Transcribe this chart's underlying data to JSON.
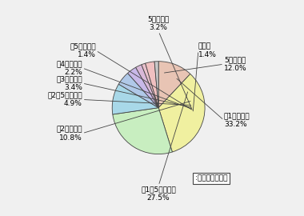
{
  "values": [
    12.0,
    33.2,
    27.5,
    10.8,
    4.9,
    3.4,
    2.2,
    1.4,
    3.2,
    1.4
  ],
  "colors": [
    "#e8c4b4",
    "#f0f0a0",
    "#c8eec0",
    "#a8d8e8",
    "#b0c8e8",
    "#c8b8e8",
    "#d8b8d8",
    "#e8c0cc",
    "#f0c0c0",
    "#c8c8c8"
  ],
  "labels": [
    "5千円未満",
    "〜1万円未満",
    "〜1万5千円未満",
    "〜2万円未満",
    "〜2万5千円未満",
    "〜3万円未満",
    "〜4万円未満",
    "〜5万円未満",
    "5万円以上",
    "無回答"
  ],
  "pcts": [
    "12.0%",
    "33.2%",
    "27.5%",
    "10.8%",
    "4.9%",
    "3.4%",
    "2.2%",
    "1.4%",
    "3.2%",
    "1.4%"
  ],
  "legend_text": ":個人年金加入者",
  "bg_color": "#f0f0f0",
  "edge_color": "#444444",
  "fontsize": 6.5
}
